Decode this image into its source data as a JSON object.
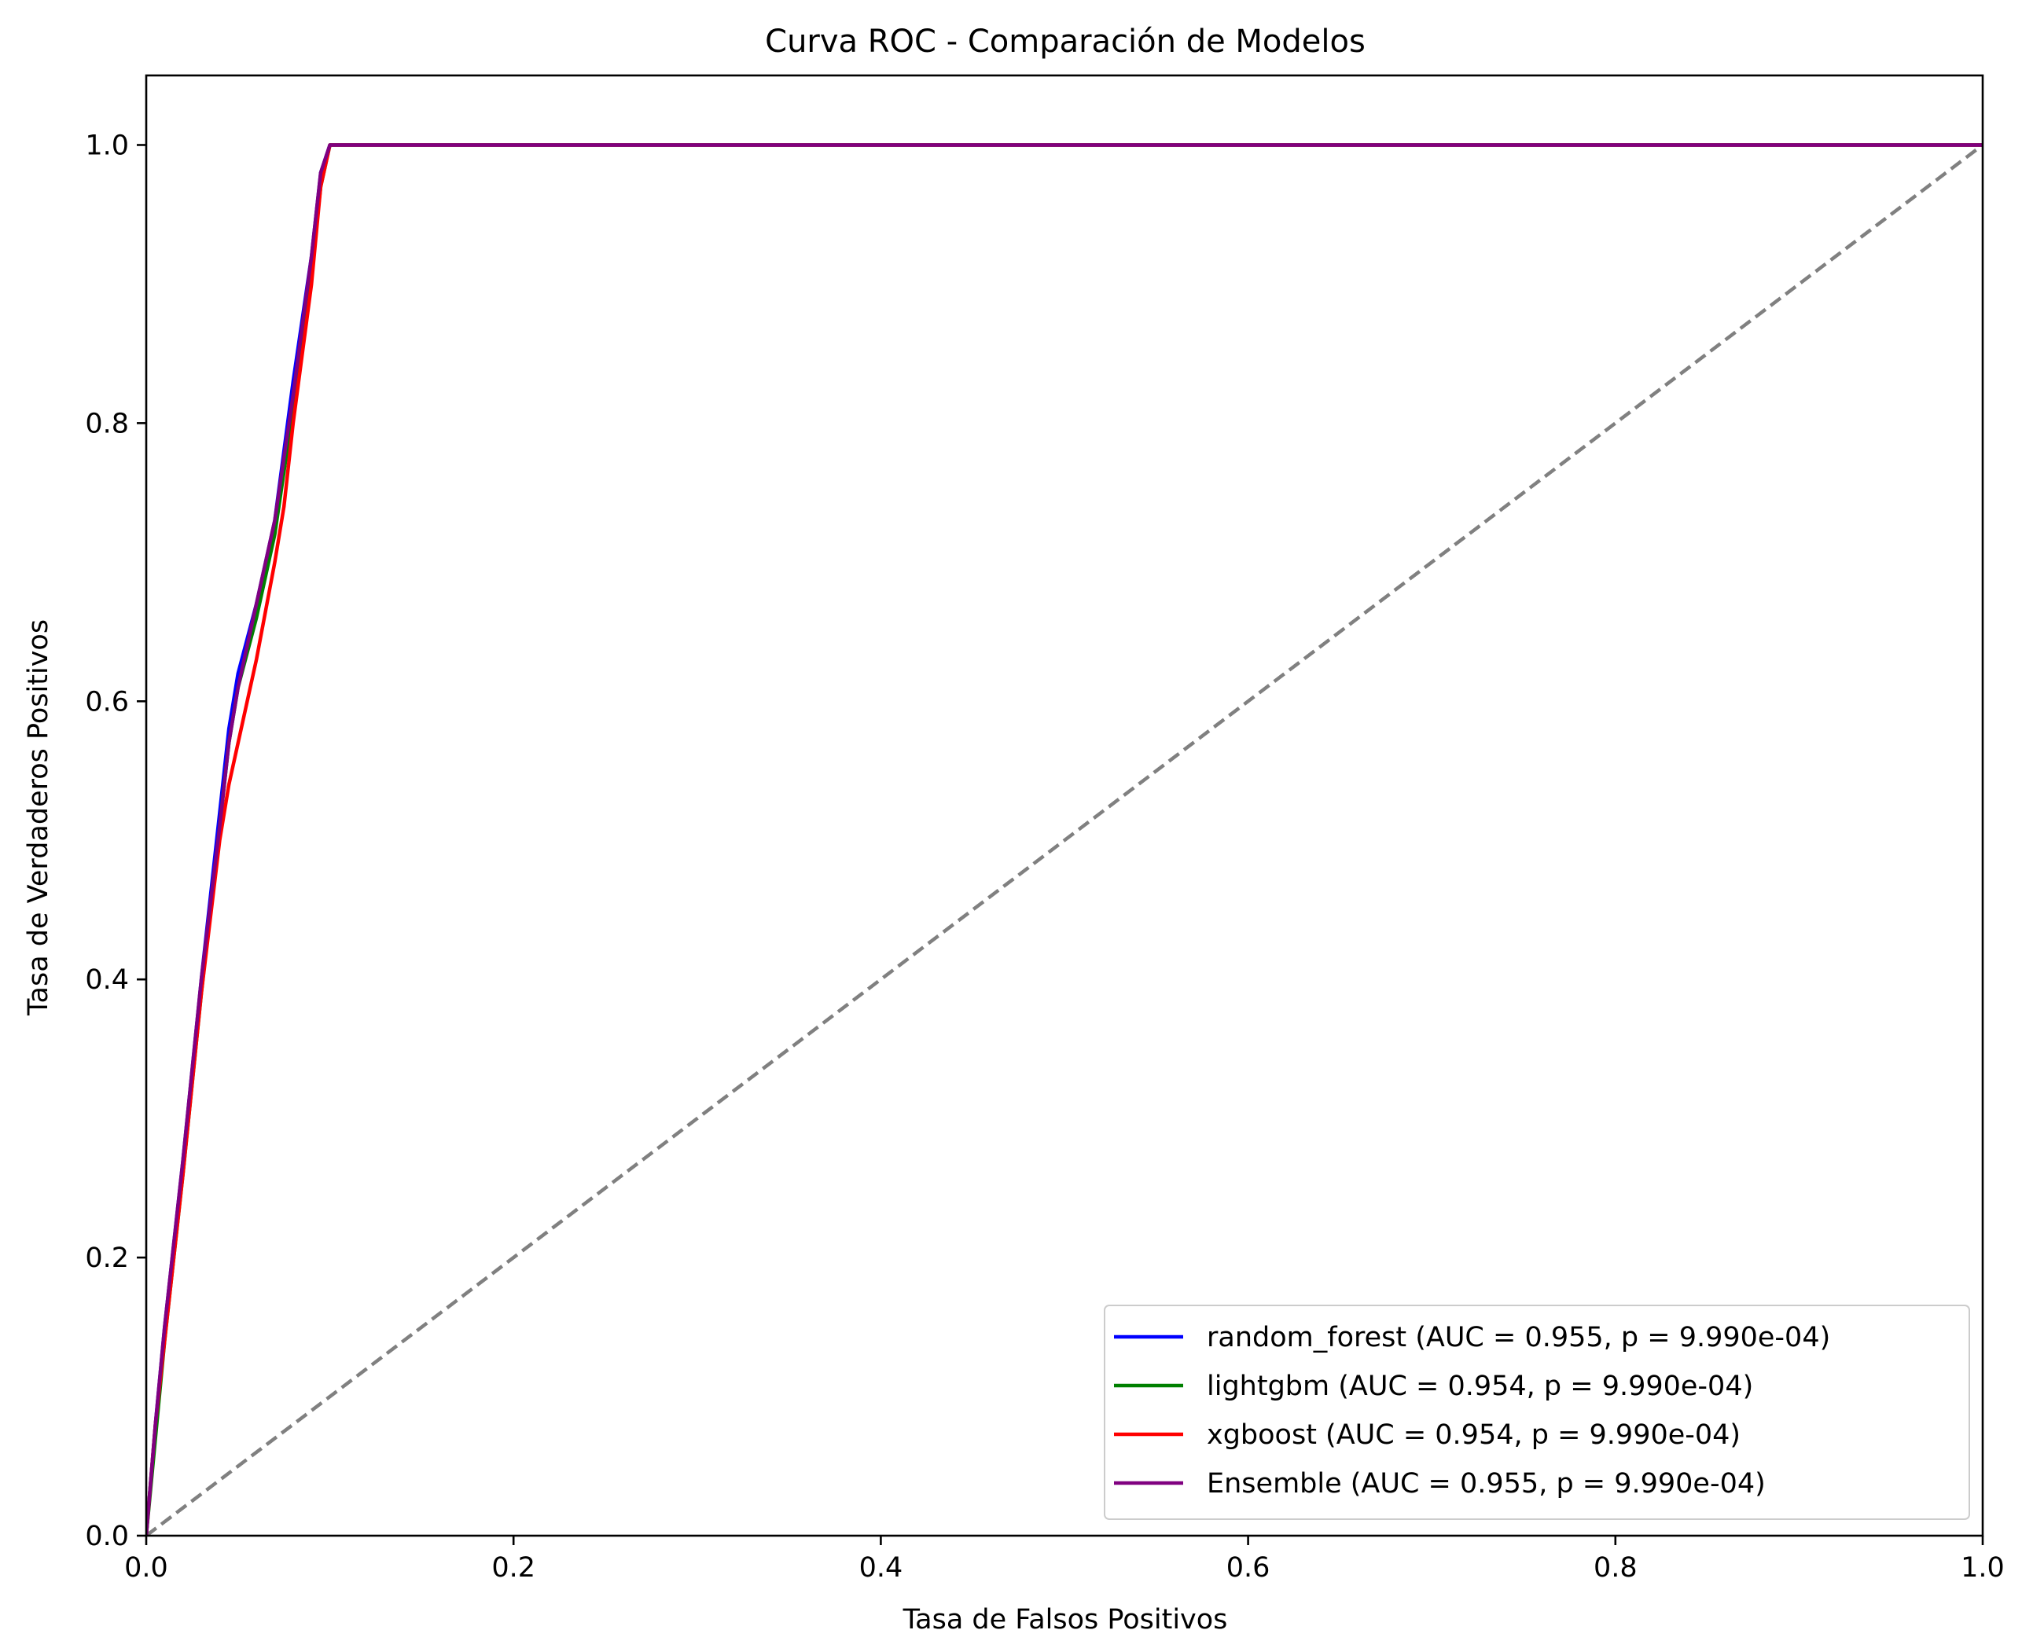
{
  "chart_data": {
    "type": "line",
    "title": "Curva ROC - Comparación de Modelos",
    "xlabel": "Tasa de Falsos Positivos",
    "ylabel": "Tasa de Verdaderos Positivos",
    "xlim": [
      0.0,
      1.0
    ],
    "ylim": [
      0.0,
      1.05
    ],
    "xticks": [
      0.0,
      0.2,
      0.4,
      0.6,
      0.8,
      1.0
    ],
    "yticks": [
      0.0,
      0.2,
      0.4,
      0.6,
      0.8,
      1.0
    ],
    "xtick_labels": [
      "0.0",
      "0.2",
      "0.4",
      "0.6",
      "0.8",
      "1.0"
    ],
    "ytick_labels": [
      "0.0",
      "0.2",
      "0.4",
      "0.6",
      "0.8",
      "1.0"
    ],
    "grid": false,
    "legend_position": "lower-right",
    "series": [
      {
        "name": "random_forest (AUC = 0.955, p = 9.990e-04)",
        "color": "#0000ff",
        "x": [
          0.0,
          0.005,
          0.01,
          0.02,
          0.03,
          0.04,
          0.045,
          0.05,
          0.06,
          0.07,
          0.08,
          0.09,
          0.095,
          0.1,
          0.2,
          0.4,
          0.6,
          0.8,
          1.0
        ],
        "y": [
          0.0,
          0.08,
          0.15,
          0.27,
          0.4,
          0.52,
          0.58,
          0.62,
          0.67,
          0.73,
          0.83,
          0.92,
          0.98,
          1.0,
          1.0,
          1.0,
          1.0,
          1.0,
          1.0
        ]
      },
      {
        "name": "lightgbm (AUC = 0.954, p = 9.990e-04)",
        "color": "#008000",
        "x": [
          0.0,
          0.005,
          0.01,
          0.02,
          0.03,
          0.04,
          0.045,
          0.05,
          0.06,
          0.07,
          0.08,
          0.09,
          0.095,
          0.1,
          0.2,
          0.4,
          0.6,
          0.8,
          1.0
        ],
        "y": [
          0.0,
          0.07,
          0.14,
          0.26,
          0.39,
          0.51,
          0.57,
          0.61,
          0.66,
          0.72,
          0.81,
          0.91,
          0.97,
          1.0,
          1.0,
          1.0,
          1.0,
          1.0,
          1.0
        ]
      },
      {
        "name": "xgboost (AUC = 0.954, p = 9.990e-04)",
        "color": "#ff0000",
        "x": [
          0.0,
          0.005,
          0.01,
          0.02,
          0.03,
          0.04,
          0.045,
          0.05,
          0.06,
          0.07,
          0.075,
          0.08,
          0.09,
          0.095,
          0.1,
          0.2,
          0.4,
          0.6,
          0.8,
          1.0
        ],
        "y": [
          0.0,
          0.08,
          0.14,
          0.26,
          0.39,
          0.5,
          0.54,
          0.57,
          0.63,
          0.7,
          0.74,
          0.8,
          0.9,
          0.97,
          1.0,
          1.0,
          1.0,
          1.0,
          1.0,
          1.0
        ]
      },
      {
        "name": "Ensemble (AUC = 0.955, p = 9.990e-04)",
        "color": "#800080",
        "x": [
          0.0,
          0.005,
          0.01,
          0.02,
          0.03,
          0.04,
          0.045,
          0.05,
          0.06,
          0.07,
          0.08,
          0.09,
          0.095,
          0.1,
          0.2,
          0.4,
          0.6,
          0.8,
          1.0
        ],
        "y": [
          0.0,
          0.08,
          0.15,
          0.27,
          0.4,
          0.51,
          0.57,
          0.61,
          0.67,
          0.73,
          0.82,
          0.92,
          0.98,
          1.0,
          1.0,
          1.0,
          1.0,
          1.0,
          1.0
        ]
      }
    ],
    "reference_line": {
      "style": "dashed",
      "color": "#808080",
      "x": [
        0.0,
        1.0
      ],
      "y": [
        0.0,
        1.0
      ]
    }
  }
}
